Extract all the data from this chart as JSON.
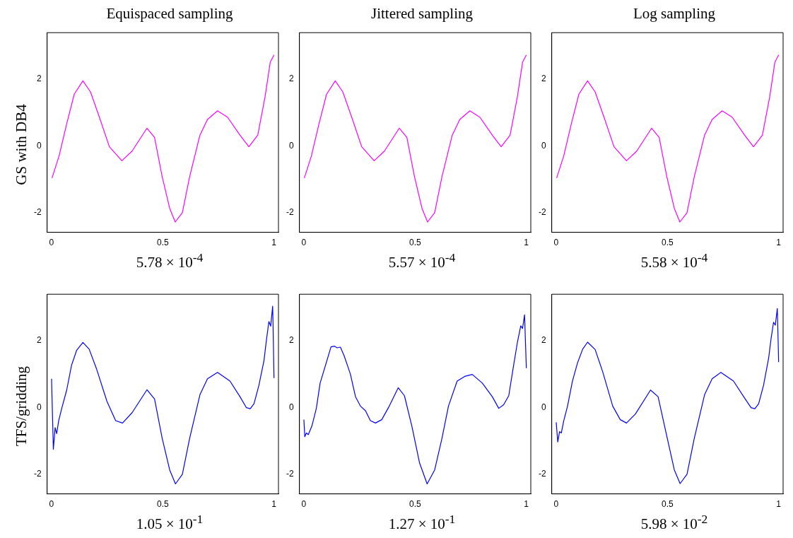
{
  "chart_data": [
    {
      "type": "line",
      "title": "Equispaced sampling",
      "ylabel": "GS with DB4",
      "xlabel": "5.78 × 10$^{-4}$",
      "xlim": [
        -0.02,
        1.02
      ],
      "ylim": [
        -2.6,
        3.4
      ],
      "xticks": [
        0,
        0.5,
        1
      ],
      "yticks": [
        -2,
        0,
        2
      ],
      "marker": "none",
      "series": [
        {
          "color": "#ff00ff",
          "x": [
            0.002,
            0.034,
            0.068,
            0.102,
            0.141,
            0.175,
            0.215,
            0.26,
            0.316,
            0.362,
            0.429,
            0.463,
            0.497,
            0.531,
            0.556,
            0.588,
            0.621,
            0.667,
            0.701,
            0.746,
            0.791,
            0.847,
            0.887,
            0.927,
            0.96,
            0.983,
            1.0
          ],
          "values": [
            -0.97,
            -0.3,
            0.66,
            1.55,
            1.95,
            1.62,
            0.86,
            -0.03,
            -0.45,
            -0.16,
            0.53,
            0.25,
            -0.92,
            -1.88,
            -2.29,
            -2.01,
            -0.92,
            0.32,
            0.79,
            1.05,
            0.86,
            0.32,
            -0.03,
            0.32,
            1.48,
            2.51,
            2.73
          ]
        }
      ]
    },
    {
      "type": "line",
      "title": "Jittered sampling",
      "xlabel": "5.57 × 10$^{-4}$",
      "xlim": [
        -0.02,
        1.02
      ],
      "ylim": [
        -2.6,
        3.4
      ],
      "xticks": [
        0,
        0.5,
        1
      ],
      "yticks": [
        -2,
        0,
        2
      ],
      "marker": "none",
      "series": [
        {
          "color": "#ff00ff",
          "x": [
            0.002,
            0.034,
            0.068,
            0.102,
            0.141,
            0.175,
            0.215,
            0.26,
            0.316,
            0.362,
            0.429,
            0.463,
            0.497,
            0.531,
            0.556,
            0.588,
            0.621,
            0.667,
            0.701,
            0.746,
            0.791,
            0.847,
            0.887,
            0.927,
            0.96,
            0.983,
            1.0
          ],
          "values": [
            -0.97,
            -0.3,
            0.66,
            1.55,
            1.95,
            1.62,
            0.86,
            -0.03,
            -0.45,
            -0.16,
            0.53,
            0.25,
            -0.92,
            -1.88,
            -2.29,
            -2.01,
            -0.92,
            0.32,
            0.79,
            1.05,
            0.86,
            0.32,
            -0.03,
            0.32,
            1.48,
            2.51,
            2.73
          ]
        }
      ]
    },
    {
      "type": "line",
      "title": "Log sampling",
      "xlabel": "5.58 × 10$^{-4}$",
      "xlim": [
        -0.02,
        1.02
      ],
      "ylim": [
        -2.6,
        3.4
      ],
      "xticks": [
        0,
        0.5,
        1
      ],
      "yticks": [
        -2,
        0,
        2
      ],
      "marker": "none",
      "series": [
        {
          "color": "#ff00ff",
          "x": [
            0.002,
            0.034,
            0.068,
            0.102,
            0.141,
            0.175,
            0.215,
            0.26,
            0.316,
            0.362,
            0.429,
            0.463,
            0.497,
            0.531,
            0.556,
            0.588,
            0.621,
            0.667,
            0.701,
            0.746,
            0.791,
            0.847,
            0.887,
            0.927,
            0.96,
            0.983,
            1.0
          ],
          "values": [
            -0.97,
            -0.3,
            0.66,
            1.55,
            1.95,
            1.62,
            0.86,
            -0.03,
            -0.45,
            -0.16,
            0.53,
            0.25,
            -0.92,
            -1.88,
            -2.29,
            -2.01,
            -0.92,
            0.32,
            0.79,
            1.05,
            0.86,
            0.32,
            -0.03,
            0.32,
            1.48,
            2.51,
            2.73
          ]
        }
      ]
    },
    {
      "type": "line",
      "ylabel": "TFS/gridding",
      "xlabel": "1.05 × 10$^{-1}$",
      "xlim": [
        -0.02,
        1.02
      ],
      "ylim": [
        -2.6,
        3.4
      ],
      "xticks": [
        0,
        0.5,
        1
      ],
      "yticks": [
        -2,
        0,
        2
      ],
      "marker": "none",
      "series": [
        {
          "color": "#0000ff",
          "x": [
            0,
            0.008,
            0.016,
            0.023,
            0.032,
            0.047,
            0.068,
            0.09,
            0.113,
            0.141,
            0.169,
            0.203,
            0.249,
            0.288,
            0.319,
            0.362,
            0.429,
            0.463,
            0.497,
            0.531,
            0.557,
            0.588,
            0.621,
            0.667,
            0.701,
            0.746,
            0.802,
            0.847,
            0.876,
            0.893,
            0.91,
            0.932,
            0.955,
            0.966,
            0.977,
            0.985,
            0.994,
            1.0
          ],
          "values": [
            0.86,
            -1.26,
            -0.61,
            -0.79,
            -0.4,
            0.0,
            0.52,
            1.27,
            1.72,
            1.95,
            1.75,
            1.14,
            0.18,
            -0.4,
            -0.47,
            -0.16,
            0.53,
            0.25,
            -0.92,
            -1.88,
            -2.3,
            -2.01,
            -0.92,
            0.38,
            0.86,
            1.05,
            0.79,
            0.32,
            -0.01,
            -0.04,
            0.11,
            0.66,
            1.41,
            2.03,
            2.58,
            2.44,
            3.04,
            0.88
          ]
        }
      ]
    },
    {
      "type": "line",
      "xlabel": "1.27 × 10$^{-1}$",
      "xlim": [
        -0.02,
        1.02
      ],
      "ylim": [
        -2.6,
        3.4
      ],
      "xticks": [
        0,
        0.5,
        1
      ],
      "yticks": [
        -2,
        0,
        2
      ],
      "marker": "none",
      "series": [
        {
          "color": "#0000ff",
          "x": [
            0,
            0.004,
            0.011,
            0.02,
            0.036,
            0.056,
            0.073,
            0.096,
            0.122,
            0.138,
            0.149,
            0.164,
            0.181,
            0.209,
            0.232,
            0.254,
            0.277,
            0.299,
            0.322,
            0.35,
            0.384,
            0.424,
            0.452,
            0.486,
            0.52,
            0.554,
            0.588,
            0.621,
            0.65,
            0.689,
            0.723,
            0.757,
            0.802,
            0.847,
            0.876,
            0.898,
            0.921,
            0.943,
            0.96,
            0.975,
            0.983,
            0.992,
            1.0
          ],
          "values": [
            -0.37,
            -0.88,
            -0.77,
            -0.82,
            -0.56,
            -0.03,
            0.73,
            1.24,
            1.82,
            1.84,
            1.79,
            1.81,
            1.55,
            1.0,
            0.32,
            0.04,
            -0.1,
            -0.4,
            -0.47,
            -0.37,
            0.04,
            0.59,
            0.35,
            -0.58,
            -1.67,
            -2.3,
            -1.88,
            -0.92,
            0.04,
            0.79,
            0.93,
            0.99,
            0.73,
            0.32,
            -0.03,
            0.08,
            0.35,
            1.27,
            1.96,
            2.45,
            2.37,
            2.78,
            1.18
          ]
        }
      ]
    },
    {
      "type": "line",
      "xlabel": "5.98 × 10$^{-2}$",
      "xlim": [
        -0.02,
        1.02
      ],
      "ylim": [
        -2.6,
        3.4
      ],
      "xticks": [
        0,
        0.5,
        1
      ],
      "yticks": [
        -2,
        0,
        2
      ],
      "marker": "none",
      "series": [
        {
          "color": "#0000ff",
          "x": [
            0,
            0.007,
            0.015,
            0.023,
            0.034,
            0.051,
            0.073,
            0.096,
            0.119,
            0.141,
            0.175,
            0.209,
            0.254,
            0.288,
            0.316,
            0.356,
            0.424,
            0.458,
            0.492,
            0.531,
            0.557,
            0.588,
            0.621,
            0.667,
            0.701,
            0.74,
            0.797,
            0.847,
            0.876,
            0.893,
            0.91,
            0.932,
            0.955,
            0.966,
            0.977,
            0.985,
            0.994,
            1.0
          ],
          "values": [
            -0.45,
            -1.04,
            -0.73,
            -0.77,
            -0.4,
            0.04,
            0.79,
            1.34,
            1.75,
            1.96,
            1.74,
            1.07,
            0.04,
            -0.37,
            -0.47,
            -0.2,
            0.52,
            0.32,
            -0.71,
            -1.88,
            -2.29,
            -2.01,
            -0.92,
            0.38,
            0.86,
            1.05,
            0.79,
            0.28,
            -0.01,
            -0.04,
            0.11,
            0.66,
            1.48,
            2.07,
            2.56,
            2.47,
            2.97,
            1.36
          ]
        }
      ]
    }
  ]
}
